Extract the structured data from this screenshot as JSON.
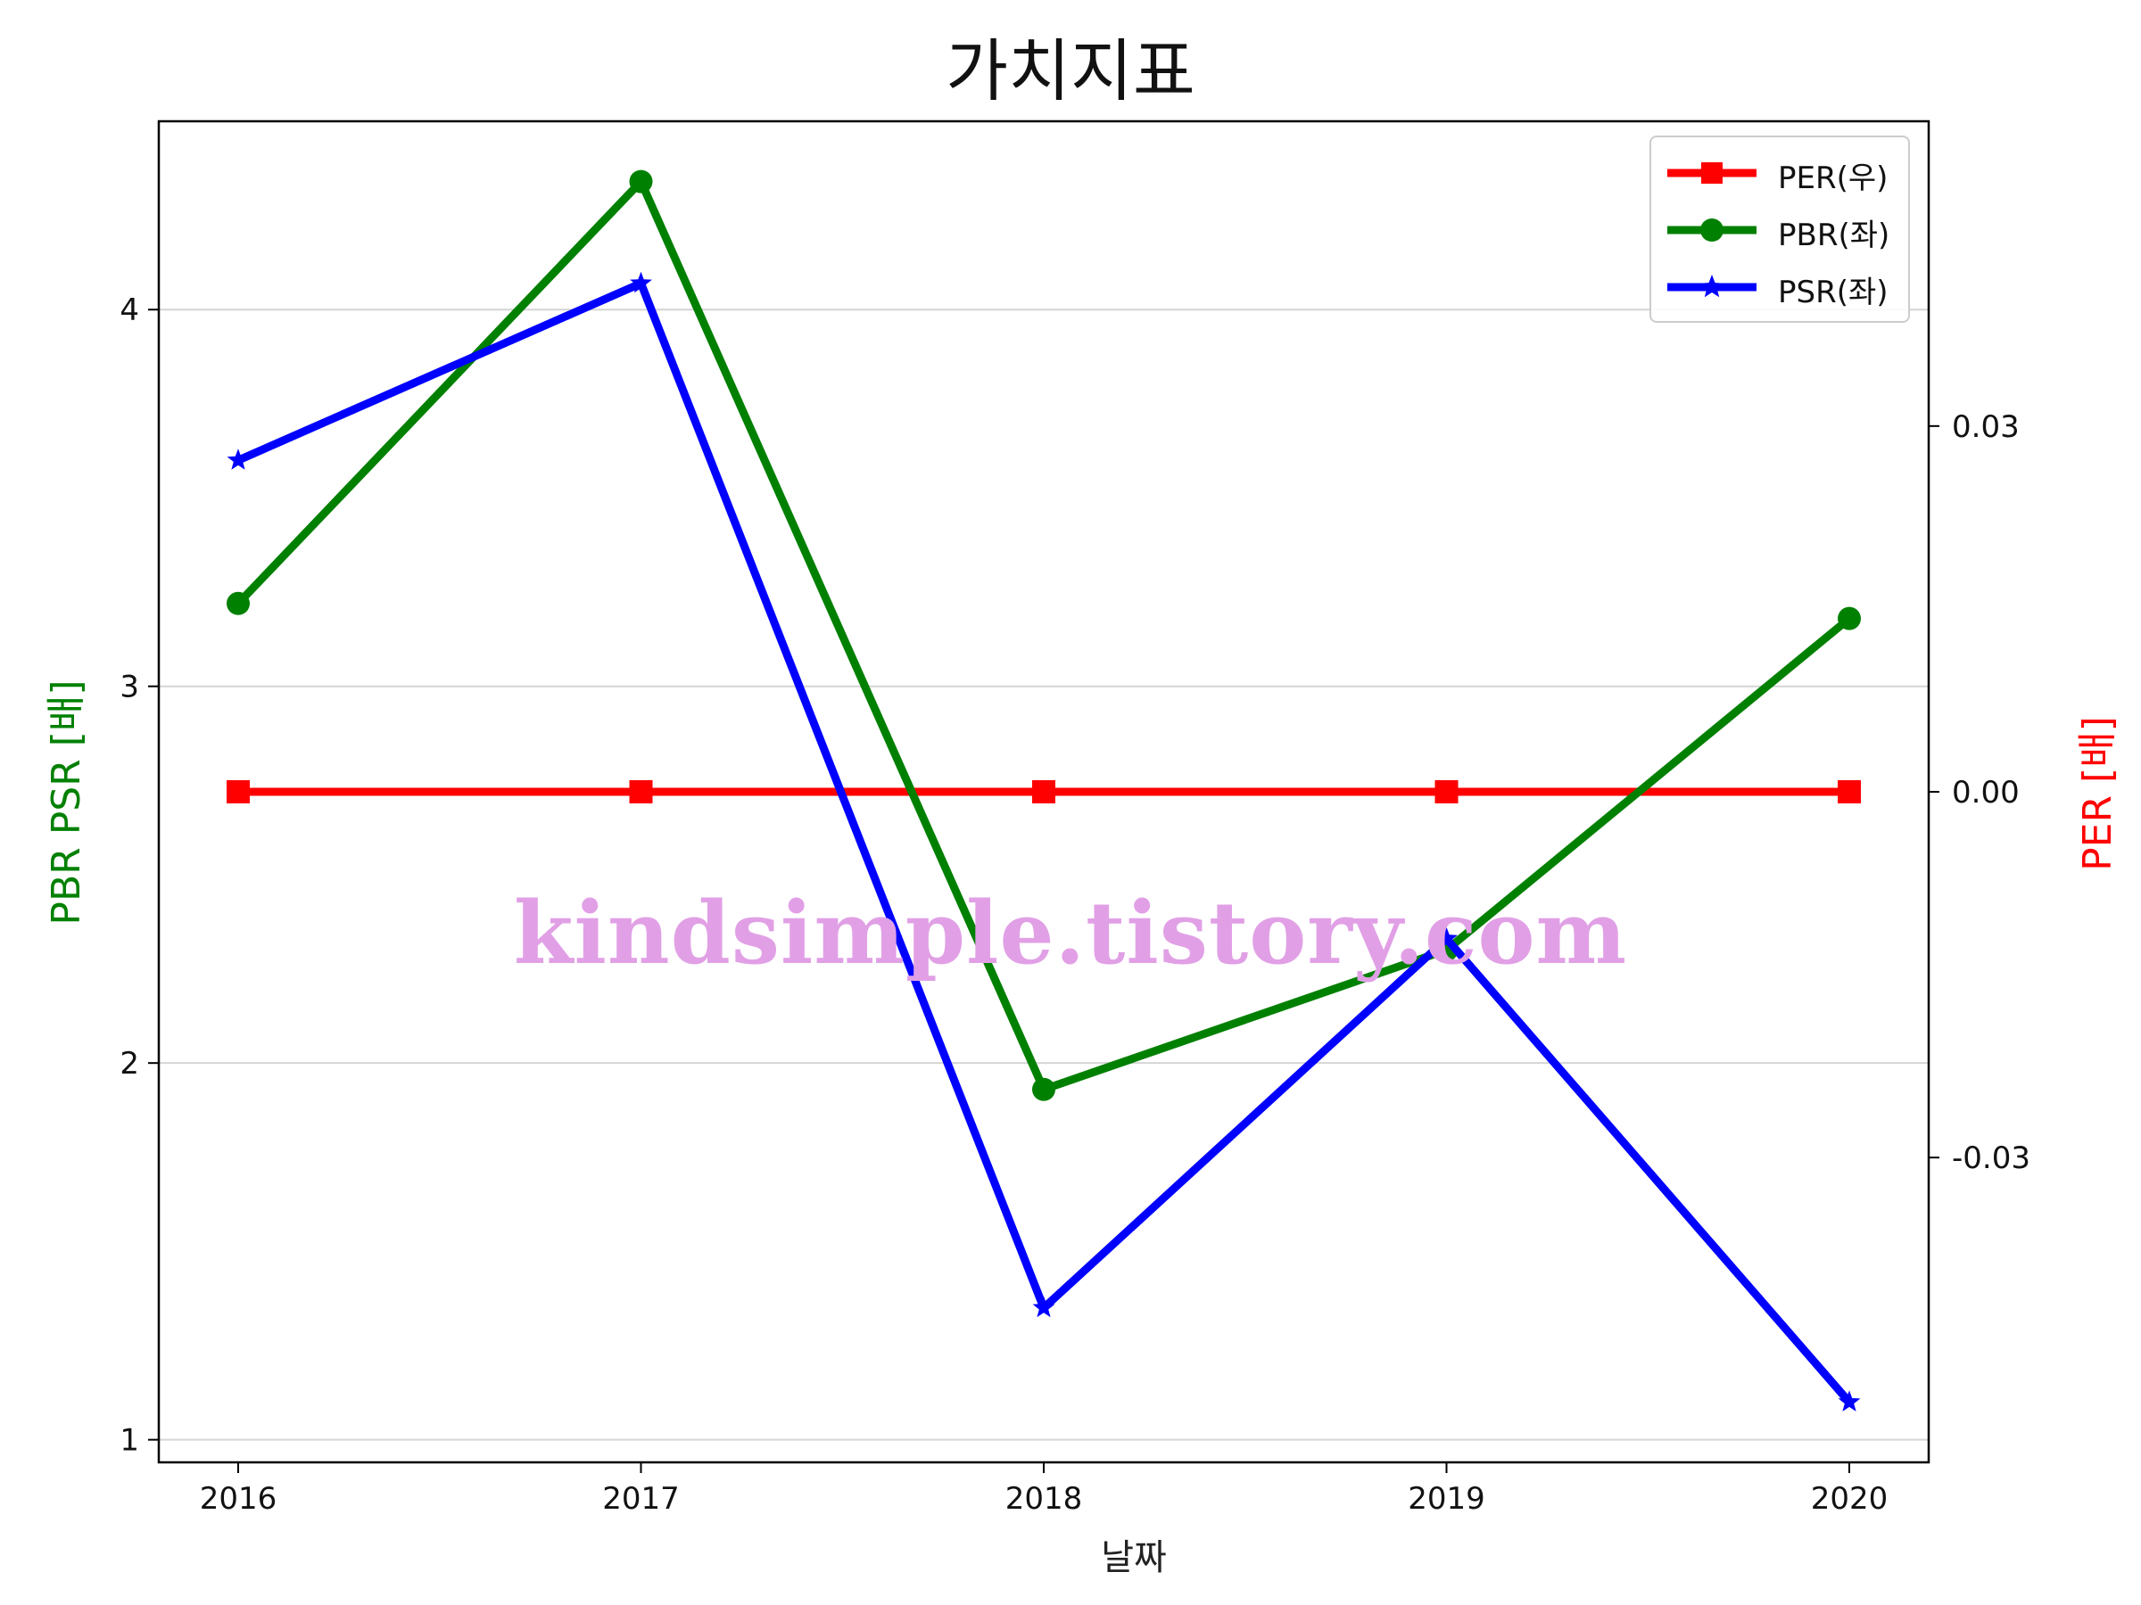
{
  "chart_data": {
    "type": "line",
    "title": "가치지표",
    "xlabel": "날짜",
    "ylabel_left": "PBR PSR [배]",
    "ylabel_right": "PER [배]",
    "x": [
      "2016",
      "2017",
      "2018",
      "2019",
      "2020"
    ],
    "series": [
      {
        "name": "PER(우)",
        "axis": "right",
        "color": "#ff0000",
        "marker": "square",
        "values": [
          0,
          0,
          0,
          0,
          0
        ]
      },
      {
        "name": "PBR(좌)",
        "axis": "left",
        "color": "#008000",
        "marker": "circle",
        "values": [
          3.22,
          4.34,
          1.93,
          2.3,
          3.18
        ]
      },
      {
        "name": "PSR(좌)",
        "axis": "left",
        "color": "#0000ff",
        "marker": "star",
        "values": [
          3.6,
          4.07,
          1.35,
          2.33,
          1.1
        ]
      }
    ],
    "left_axis": {
      "ylim": [
        0.94,
        4.5
      ],
      "ticks": [
        1,
        2,
        3,
        4
      ],
      "tick_labels": [
        "1",
        "2",
        "3",
        "4"
      ]
    },
    "right_axis": {
      "ylim": [
        -0.055,
        0.055
      ],
      "ticks": [
        0.03,
        0,
        -0.03
      ],
      "tick_labels": [
        "0.03",
        "0.00",
        "-0.03"
      ]
    },
    "grid": true,
    "legend_position": "top-right",
    "watermark": "kindsimple.tistory.com"
  }
}
